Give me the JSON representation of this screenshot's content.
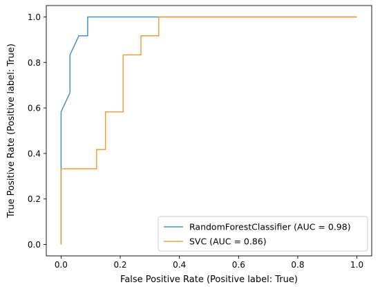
{
  "chart_data": {
    "type": "line",
    "title": "",
    "xlabel": "False Positive Rate (Positive label: True)",
    "ylabel": "True Positive Rate (Positive label: True)",
    "xlim": [
      -0.05,
      1.05
    ],
    "ylim": [
      -0.05,
      1.05
    ],
    "x_ticks": [
      0.0,
      0.2,
      0.4,
      0.6,
      0.8,
      1.0
    ],
    "x_tick_labels": [
      "0.0",
      "0.2",
      "0.4",
      "0.6",
      "0.8",
      "1.0"
    ],
    "y_ticks": [
      0.0,
      0.2,
      0.4,
      0.6,
      0.8,
      1.0
    ],
    "y_tick_labels": [
      "0.0",
      "0.2",
      "0.4",
      "0.6",
      "0.8",
      "1.0"
    ],
    "grid": false,
    "legend_position": "lower-right",
    "series": [
      {
        "name": "RandomForestClassifier (AUC = 0.98)",
        "color": "#4c8fc4",
        "x": [
          0.0,
          0.0,
          0.0,
          0.03,
          0.03,
          0.03,
          0.03,
          0.06,
          0.06,
          0.09,
          0.09,
          0.33,
          1.0
        ],
        "y": [
          0.0,
          0.333,
          0.583,
          0.667,
          0.75,
          0.833,
          0.833,
          0.917,
          0.917,
          0.917,
          1.0,
          1.0,
          1.0
        ]
      },
      {
        "name": "SVC (AUC = 0.86)",
        "color": "#f39c3c",
        "x": [
          0.0,
          0.0,
          0.12,
          0.12,
          0.15,
          0.15,
          0.21,
          0.21,
          0.27,
          0.27,
          0.33,
          0.33,
          1.0
        ],
        "y": [
          0.0,
          0.333,
          0.333,
          0.417,
          0.417,
          0.583,
          0.583,
          0.833,
          0.833,
          0.917,
          0.917,
          1.0,
          1.0
        ]
      }
    ]
  }
}
